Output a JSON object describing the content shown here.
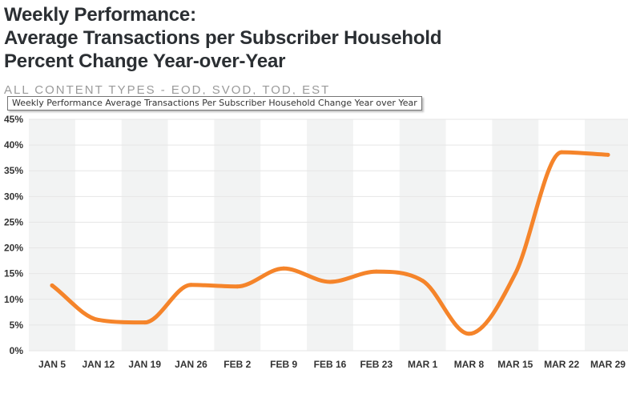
{
  "title_lines": [
    "Weekly Performance:",
    "Average Transactions per Subscriber Household",
    "Percent Change Year-over-Year"
  ],
  "subtitle": "ALL CONTENT TYPES - EOD, SVOD, TOD, EST",
  "tooltip": "Weekly Performance Average Transactions Per Subscriber Household Change Year over Year",
  "colors": {
    "line": "#f5842a",
    "band": "#f2f3f3",
    "grid": "#e6e6e6",
    "text": "#333333"
  },
  "chart_data": {
    "type": "line",
    "title": "Weekly Performance: Average Transactions per Subscriber Household Percent Change Year-over-Year",
    "subtitle": "ALL CONTENT TYPES - EOD, SVOD, TOD, EST",
    "categories": [
      "JAN 5",
      "JAN 12",
      "JAN 19",
      "JAN 26",
      "FEB 2",
      "FEB 9",
      "FEB 16",
      "FEB 23",
      "MAR 1",
      "MAR 8",
      "MAR 15",
      "MAR 22",
      "MAR 29"
    ],
    "series": [
      {
        "values": [
          12.7,
          6.0,
          5.5,
          12.8,
          12.5,
          16.0,
          13.4,
          15.4,
          13.6,
          3.3,
          15.0,
          38.6,
          38.1
        ]
      }
    ],
    "yticks": [
      "0%",
      "5%",
      "10%",
      "15%",
      "20%",
      "25%",
      "30%",
      "35%",
      "40%",
      "45%"
    ],
    "ylim": [
      0,
      45
    ],
    "y_unit": "%",
    "grid": true,
    "alternating_bands": true,
    "legend": "none"
  }
}
